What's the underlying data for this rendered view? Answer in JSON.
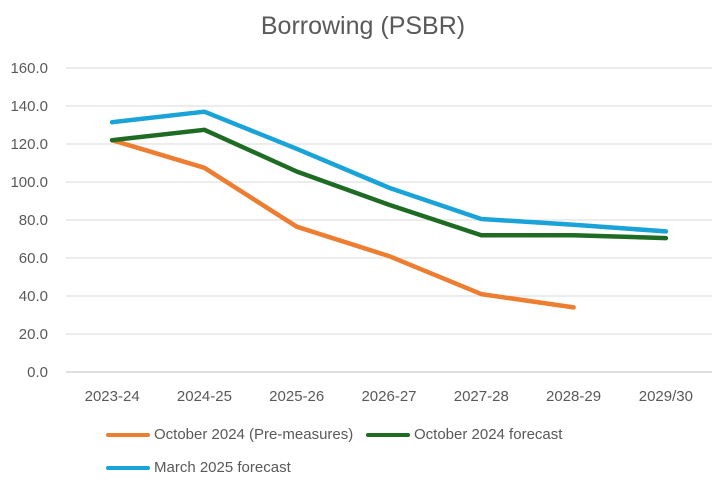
{
  "chart_data": {
    "type": "line",
    "title": "Borrowing (PSBR)",
    "xlabel": "",
    "ylabel": "",
    "categories": [
      "2023-24",
      "2024-25",
      "2025-26",
      "2026-27",
      "2027-28",
      "2028-29",
      "2029/30"
    ],
    "yticks": [
      "0.0",
      "20.0",
      "40.0",
      "60.0",
      "80.0",
      "100.0",
      "120.0",
      "140.0",
      "160.0"
    ],
    "ylim": [
      0,
      160
    ],
    "grid": "horizontal",
    "legend_position": "bottom",
    "series": [
      {
        "name": "October 2024 (Pre-measures)",
        "color": "#ED7D31",
        "values": [
          122.0,
          107.5,
          76.5,
          61.0,
          41.0,
          34.0,
          null
        ]
      },
      {
        "name": "October 2024 forecast",
        "color": "#1E6B24",
        "values": [
          122.0,
          127.5,
          105.5,
          88.0,
          72.0,
          72.0,
          70.5
        ]
      },
      {
        "name": "March 2025 forecast",
        "color": "#1AA3D9",
        "values": [
          131.5,
          137.0,
          117.5,
          97.0,
          80.5,
          77.5,
          74.0
        ]
      }
    ]
  }
}
